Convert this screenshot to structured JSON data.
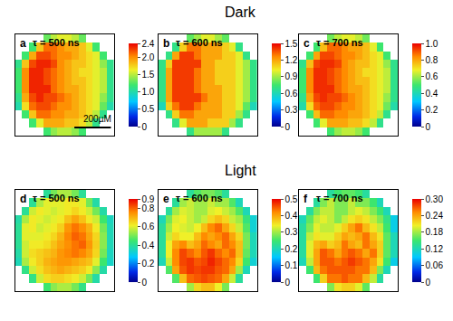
{
  "chart_data": [
    {
      "type": "heatmap",
      "panel": "a",
      "group": "Dark",
      "title": "τ = 500 ns",
      "color": "jet",
      "tick_labels": false,
      "zlim": [
        0,
        2.4
      ],
      "zticks": [
        0,
        0.5,
        {
          "value": 1,
          "label": "1.0"
        },
        1.5,
        {
          "value": 2,
          "label": "2.0"
        },
        2.4
      ],
      "z": [
        [
          null,
          null,
          null,
          null,
          1.3,
          1.5,
          1.6,
          1.6,
          1.5,
          1.3,
          null,
          null,
          null,
          null
        ],
        [
          null,
          null,
          1.2,
          1.8,
          2.1,
          2.1,
          2.0,
          1.9,
          1.9,
          1.8,
          1.6,
          1.2,
          null,
          null
        ],
        [
          null,
          1.2,
          1.9,
          2.2,
          2.2,
          2.1,
          2.0,
          2.0,
          1.9,
          1.8,
          1.7,
          1.6,
          1.2,
          null
        ],
        [
          1.1,
          1.8,
          2.2,
          2.3,
          2.3,
          2.2,
          2.0,
          1.9,
          1.8,
          1.8,
          1.7,
          1.6,
          1.4,
          1.1
        ],
        [
          1.2,
          2.0,
          2.3,
          2.3,
          2.2,
          2.1,
          2.0,
          1.9,
          1.8,
          1.7,
          1.7,
          1.6,
          1.5,
          1.1
        ],
        [
          1.2,
          2.0,
          2.3,
          2.3,
          2.2,
          2.1,
          2.0,
          1.9,
          1.8,
          1.8,
          1.7,
          1.6,
          1.5,
          1.1
        ],
        [
          1.2,
          2.0,
          2.3,
          2.3,
          2.3,
          2.1,
          2.0,
          1.9,
          1.9,
          1.8,
          1.7,
          1.6,
          1.5,
          1.1
        ],
        [
          1.1,
          1.9,
          2.2,
          2.3,
          2.2,
          2.2,
          2.1,
          2.0,
          1.9,
          1.8,
          1.7,
          1.6,
          1.4,
          1.1
        ],
        [
          1.0,
          1.7,
          2.1,
          2.2,
          2.2,
          2.1,
          2.0,
          2.0,
          1.9,
          1.8,
          1.7,
          1.6,
          1.3,
          1.0
        ],
        [
          null,
          1.2,
          1.8,
          2.1,
          2.1,
          2.0,
          2.0,
          1.9,
          1.9,
          1.8,
          1.7,
          1.5,
          1.1,
          null
        ],
        [
          null,
          null,
          1.2,
          1.6,
          1.9,
          1.9,
          1.9,
          1.8,
          1.8,
          1.7,
          1.5,
          1.1,
          null,
          null
        ],
        [
          null,
          null,
          null,
          null,
          1.2,
          1.4,
          1.5,
          1.5,
          1.4,
          1.2,
          null,
          null,
          null,
          null
        ]
      ]
    },
    {
      "type": "heatmap",
      "panel": "b",
      "group": "Dark",
      "title": "τ = 600 ns",
      "color": "jet",
      "tick_labels": false,
      "zlim": [
        0,
        1.5
      ],
      "zticks": [
        0,
        0.3,
        0.6,
        0.9,
        1.2,
        1.5
      ],
      "z": [
        [
          null,
          null,
          null,
          null,
          0.8,
          0.9,
          1.0,
          1.0,
          0.9,
          0.8,
          null,
          null,
          null,
          null
        ],
        [
          null,
          null,
          0.7,
          1.1,
          1.3,
          1.3,
          1.2,
          1.2,
          1.2,
          1.1,
          1.0,
          0.7,
          null,
          null
        ],
        [
          null,
          0.7,
          1.2,
          1.4,
          1.4,
          1.3,
          1.2,
          1.2,
          1.2,
          1.1,
          1.1,
          1.0,
          0.7,
          null
        ],
        [
          0.7,
          1.1,
          1.4,
          1.4,
          1.4,
          1.4,
          1.2,
          1.2,
          1.1,
          1.1,
          1.1,
          1.0,
          0.9,
          0.7
        ],
        [
          0.7,
          1.2,
          1.4,
          1.4,
          1.4,
          1.3,
          1.2,
          1.2,
          1.1,
          1.1,
          1.1,
          1.0,
          0.9,
          0.7
        ],
        [
          0.7,
          1.2,
          1.4,
          1.4,
          1.4,
          1.3,
          1.2,
          1.2,
          1.1,
          1.1,
          1.1,
          1.0,
          0.9,
          0.7
        ],
        [
          0.7,
          1.2,
          1.4,
          1.4,
          1.4,
          1.3,
          1.2,
          1.2,
          1.2,
          1.1,
          1.1,
          1.0,
          0.9,
          0.7
        ],
        [
          0.7,
          1.2,
          1.4,
          1.4,
          1.4,
          1.4,
          1.3,
          1.2,
          1.2,
          1.1,
          1.1,
          1.0,
          0.9,
          0.7
        ],
        [
          0.6,
          1.1,
          1.3,
          1.4,
          1.4,
          1.3,
          1.2,
          1.2,
          1.2,
          1.1,
          1.1,
          1.0,
          0.8,
          0.6
        ],
        [
          null,
          0.7,
          1.1,
          1.3,
          1.3,
          1.2,
          1.2,
          1.2,
          1.2,
          1.1,
          1.1,
          0.9,
          0.7,
          null
        ],
        [
          null,
          null,
          0.7,
          1.0,
          1.2,
          1.2,
          1.2,
          1.1,
          1.1,
          1.1,
          0.9,
          0.7,
          null,
          null
        ],
        [
          null,
          null,
          null,
          null,
          0.7,
          0.9,
          0.9,
          0.9,
          0.9,
          0.7,
          null,
          null,
          null,
          null
        ]
      ]
    },
    {
      "type": "heatmap",
      "panel": "c",
      "group": "Dark",
      "title": "τ = 700 ns",
      "color": "jet",
      "tick_labels": false,
      "zlim": [
        0,
        1
      ],
      "zticks": [
        0,
        0.2,
        0.4,
        0.6,
        0.8,
        {
          "value": 1,
          "label": "1.0"
        }
      ],
      "z": [
        [
          null,
          null,
          null,
          null,
          0.55,
          0.63,
          0.67,
          0.67,
          0.63,
          0.55,
          null,
          null,
          null,
          null
        ],
        [
          null,
          null,
          0.5,
          0.76,
          0.88,
          0.88,
          0.84,
          0.8,
          0.8,
          0.76,
          0.67,
          0.5,
          null,
          null
        ],
        [
          null,
          0.5,
          0.8,
          0.92,
          0.92,
          0.88,
          0.84,
          0.84,
          0.8,
          0.76,
          0.71,
          0.67,
          0.5,
          null
        ],
        [
          0.46,
          0.76,
          0.92,
          0.95,
          0.95,
          0.92,
          0.84,
          0.8,
          0.76,
          0.76,
          0.71,
          0.67,
          0.59,
          0.46
        ],
        [
          0.5,
          0.84,
          0.95,
          0.95,
          0.92,
          0.88,
          0.84,
          0.8,
          0.76,
          0.71,
          0.71,
          0.67,
          0.63,
          0.46
        ],
        [
          0.5,
          0.84,
          0.95,
          0.95,
          0.92,
          0.88,
          0.84,
          0.8,
          0.76,
          0.76,
          0.71,
          0.67,
          0.63,
          0.46
        ],
        [
          0.5,
          0.84,
          0.95,
          0.95,
          0.95,
          0.88,
          0.84,
          0.8,
          0.8,
          0.76,
          0.71,
          0.67,
          0.63,
          0.46
        ],
        [
          0.46,
          0.8,
          0.92,
          0.95,
          0.92,
          0.92,
          0.88,
          0.84,
          0.8,
          0.76,
          0.71,
          0.67,
          0.59,
          0.46
        ],
        [
          0.42,
          0.71,
          0.88,
          0.92,
          0.92,
          0.88,
          0.84,
          0.84,
          0.8,
          0.76,
          0.71,
          0.67,
          0.55,
          0.42
        ],
        [
          null,
          0.5,
          0.76,
          0.88,
          0.88,
          0.84,
          0.84,
          0.8,
          0.8,
          0.76,
          0.71,
          0.63,
          0.46,
          null
        ],
        [
          null,
          null,
          0.5,
          0.67,
          0.8,
          0.8,
          0.8,
          0.76,
          0.76,
          0.71,
          0.63,
          0.46,
          null,
          null
        ],
        [
          null,
          null,
          null,
          null,
          0.5,
          0.59,
          0.63,
          0.63,
          0.59,
          0.5,
          null,
          null,
          null,
          null
        ]
      ]
    },
    {
      "type": "heatmap",
      "panel": "d",
      "group": "Light",
      "title": "τ = 500 ns",
      "color": "jet",
      "tick_labels": false,
      "zlim": [
        0,
        0.9
      ],
      "zticks": [
        0,
        0.2,
        0.4,
        0.6,
        0.8,
        0.9
      ],
      "z": [
        [
          null,
          null,
          null,
          null,
          0.4,
          0.5,
          0.55,
          0.55,
          0.5,
          0.4,
          null,
          null,
          null,
          null
        ],
        [
          null,
          null,
          0.4,
          0.55,
          0.6,
          0.6,
          0.6,
          0.62,
          0.62,
          0.6,
          0.5,
          0.38,
          null,
          null
        ],
        [
          null,
          0.4,
          0.58,
          0.62,
          0.6,
          0.58,
          0.6,
          0.62,
          0.65,
          0.62,
          0.58,
          0.5,
          0.38,
          null
        ],
        [
          0.38,
          0.55,
          0.62,
          0.6,
          0.58,
          0.6,
          0.62,
          0.68,
          0.72,
          0.68,
          0.62,
          0.58,
          0.45,
          0.35
        ],
        [
          0.4,
          0.6,
          0.62,
          0.58,
          0.6,
          0.62,
          0.66,
          0.74,
          0.78,
          0.75,
          0.7,
          0.62,
          0.5,
          0.36
        ],
        [
          0.4,
          0.6,
          0.6,
          0.6,
          0.62,
          0.65,
          0.7,
          0.76,
          0.8,
          0.78,
          0.72,
          0.65,
          0.52,
          0.36
        ],
        [
          0.4,
          0.58,
          0.62,
          0.62,
          0.64,
          0.68,
          0.72,
          0.75,
          0.78,
          0.8,
          0.74,
          0.66,
          0.52,
          0.36
        ],
        [
          0.38,
          0.58,
          0.64,
          0.66,
          0.68,
          0.7,
          0.74,
          0.76,
          0.78,
          0.76,
          0.72,
          0.65,
          0.5,
          0.35
        ],
        [
          0.36,
          0.55,
          0.62,
          0.66,
          0.7,
          0.72,
          0.74,
          0.74,
          0.72,
          0.7,
          0.68,
          0.6,
          0.45,
          0.34
        ],
        [
          null,
          0.42,
          0.58,
          0.64,
          0.68,
          0.7,
          0.72,
          0.7,
          0.68,
          0.66,
          0.62,
          0.52,
          0.38,
          null
        ],
        [
          null,
          null,
          0.42,
          0.58,
          0.64,
          0.66,
          0.66,
          0.64,
          0.62,
          0.58,
          0.5,
          0.38,
          null,
          null
        ],
        [
          null,
          null,
          null,
          null,
          0.45,
          0.52,
          0.55,
          0.55,
          0.5,
          0.42,
          null,
          null,
          null,
          null
        ]
      ]
    },
    {
      "type": "heatmap",
      "panel": "e",
      "group": "Light",
      "title": "τ = 600 ns",
      "color": "jet",
      "tick_labels": false,
      "zlim": [
        0,
        0.5
      ],
      "zticks": [
        0,
        0.1,
        0.2,
        0.3,
        0.4,
        0.5
      ],
      "z": [
        [
          null,
          null,
          null,
          null,
          0.22,
          0.26,
          0.28,
          0.28,
          0.26,
          0.22,
          null,
          null,
          null,
          null
        ],
        [
          null,
          null,
          0.22,
          0.3,
          0.32,
          0.3,
          0.3,
          0.32,
          0.3,
          0.3,
          0.26,
          0.2,
          null,
          null
        ],
        [
          null,
          0.22,
          0.3,
          0.33,
          0.32,
          0.3,
          0.3,
          0.33,
          0.34,
          0.32,
          0.3,
          0.26,
          0.2,
          null
        ],
        [
          0.2,
          0.28,
          0.33,
          0.34,
          0.32,
          0.3,
          0.32,
          0.36,
          0.38,
          0.36,
          0.32,
          0.3,
          0.24,
          0.18
        ],
        [
          0.22,
          0.3,
          0.34,
          0.33,
          0.32,
          0.34,
          0.38,
          0.42,
          0.44,
          0.4,
          0.36,
          0.32,
          0.26,
          0.18
        ],
        [
          0.22,
          0.32,
          0.36,
          0.34,
          0.34,
          0.38,
          0.42,
          0.4,
          0.42,
          0.44,
          0.4,
          0.36,
          0.28,
          0.2
        ],
        [
          0.22,
          0.34,
          0.4,
          0.42,
          0.38,
          0.4,
          0.44,
          0.42,
          0.4,
          0.44,
          0.42,
          0.38,
          0.28,
          0.2
        ],
        [
          0.22,
          0.34,
          0.42,
          0.46,
          0.44,
          0.42,
          0.45,
          0.47,
          0.44,
          0.42,
          0.44,
          0.38,
          0.27,
          0.2
        ],
        [
          0.2,
          0.32,
          0.42,
          0.46,
          0.47,
          0.45,
          0.46,
          0.48,
          0.46,
          0.44,
          0.42,
          0.36,
          0.25,
          0.18
        ],
        [
          null,
          0.26,
          0.4,
          0.45,
          0.47,
          0.46,
          0.47,
          0.47,
          0.45,
          0.44,
          0.4,
          0.3,
          0.2,
          null
        ],
        [
          null,
          null,
          0.26,
          0.38,
          0.44,
          0.45,
          0.46,
          0.45,
          0.44,
          0.4,
          0.32,
          0.22,
          null,
          null
        ],
        [
          null,
          null,
          null,
          null,
          0.3,
          0.36,
          0.38,
          0.38,
          0.34,
          0.28,
          null,
          null,
          null,
          null
        ]
      ]
    },
    {
      "type": "heatmap",
      "panel": "f",
      "group": "Light",
      "title": "τ = 700 ns",
      "color": "jet",
      "tick_labels": false,
      "zlim": [
        0,
        0.3
      ],
      "zticks": [
        0,
        0.06,
        0.12,
        0.18,
        0.24,
        {
          "value": 0.3,
          "label": "0.30"
        }
      ],
      "z": [
        [
          null,
          null,
          null,
          null,
          0.13,
          0.15,
          0.16,
          0.16,
          0.15,
          0.13,
          null,
          null,
          null,
          null
        ],
        [
          null,
          null,
          0.13,
          0.17,
          0.19,
          0.17,
          0.17,
          0.19,
          0.17,
          0.17,
          0.15,
          0.12,
          null,
          null
        ],
        [
          null,
          0.13,
          0.17,
          0.19,
          0.19,
          0.17,
          0.17,
          0.19,
          0.2,
          0.19,
          0.17,
          0.15,
          0.12,
          null
        ],
        [
          0.12,
          0.16,
          0.19,
          0.2,
          0.19,
          0.17,
          0.19,
          0.21,
          0.22,
          0.21,
          0.19,
          0.17,
          0.14,
          0.1
        ],
        [
          0.13,
          0.17,
          0.2,
          0.19,
          0.19,
          0.2,
          0.22,
          0.24,
          0.26,
          0.23,
          0.21,
          0.19,
          0.15,
          0.1
        ],
        [
          0.13,
          0.19,
          0.21,
          0.2,
          0.2,
          0.22,
          0.24,
          0.23,
          0.24,
          0.26,
          0.23,
          0.21,
          0.16,
          0.12
        ],
        [
          0.13,
          0.2,
          0.23,
          0.24,
          0.22,
          0.23,
          0.26,
          0.24,
          0.23,
          0.26,
          0.24,
          0.22,
          0.16,
          0.12
        ],
        [
          0.13,
          0.2,
          0.24,
          0.27,
          0.26,
          0.24,
          0.26,
          0.27,
          0.26,
          0.24,
          0.26,
          0.22,
          0.16,
          0.12
        ],
        [
          0.12,
          0.19,
          0.24,
          0.27,
          0.27,
          0.26,
          0.27,
          0.28,
          0.27,
          0.26,
          0.24,
          0.21,
          0.15,
          0.1
        ],
        [
          null,
          0.15,
          0.23,
          0.26,
          0.27,
          0.27,
          0.27,
          0.27,
          0.26,
          0.26,
          0.23,
          0.17,
          0.12,
          null
        ],
        [
          null,
          null,
          0.15,
          0.22,
          0.26,
          0.26,
          0.27,
          0.26,
          0.26,
          0.23,
          0.19,
          0.13,
          null,
          null
        ],
        [
          null,
          null,
          null,
          null,
          0.17,
          0.21,
          0.22,
          0.22,
          0.2,
          0.16,
          null,
          null,
          null,
          null
        ]
      ]
    }
  ],
  "figure": {
    "row_titles": [
      "Dark",
      "Light"
    ],
    "scale_bar": {
      "label": "200µM",
      "panel": "a"
    }
  }
}
